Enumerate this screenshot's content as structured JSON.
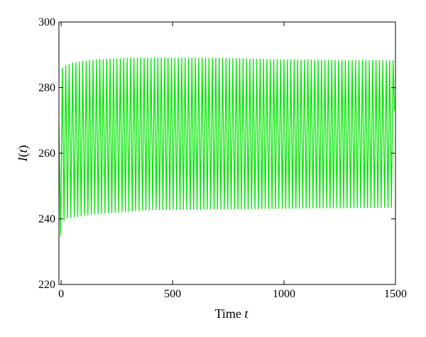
{
  "chart_data": {
    "type": "line",
    "title": "",
    "xlabel_text": "Time",
    "xlabel_var": "t",
    "ylabel_var": "I",
    "ylabel_paren_open": "(",
    "ylabel_arg": "t",
    "ylabel_paren_close": ")",
    "xlim": [
      -10,
      1500
    ],
    "ylim": [
      220,
      300
    ],
    "xticks": [
      0,
      500,
      1000,
      1500
    ],
    "xtick_labels": [
      "0",
      "500",
      "1000",
      "1500"
    ],
    "yticks": [
      220,
      240,
      260,
      280,
      300
    ],
    "ytick_labels": [
      "220",
      "240",
      "260",
      "280",
      "300"
    ],
    "grid": false,
    "series": [
      {
        "color": "#00e600",
        "t_start": -10,
        "t_end": 1495,
        "period": 15.3,
        "initial_value": 268,
        "first_min": 235,
        "peak_envelope": [
          [
            -5,
            285
          ],
          [
            10,
            286.5
          ],
          [
            50,
            287.5
          ],
          [
            150,
            288.5
          ],
          [
            300,
            289
          ],
          [
            700,
            289
          ],
          [
            1000,
            288.5
          ],
          [
            1495,
            288.2
          ]
        ],
        "trough_envelope": [
          [
            0,
            236
          ],
          [
            15,
            240
          ],
          [
            50,
            240.5
          ],
          [
            150,
            241.5
          ],
          [
            400,
            242.8
          ],
          [
            800,
            243
          ],
          [
            1000,
            243.2
          ],
          [
            1495,
            243.5
          ]
        ],
        "final_value": 273
      }
    ]
  }
}
